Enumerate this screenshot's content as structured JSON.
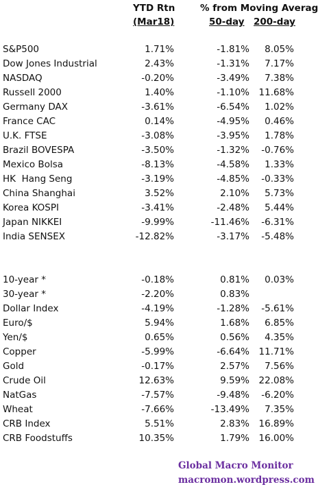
{
  "header": {
    "ytd_title": "YTD Rtn",
    "ytd_sub": "(Mar18)",
    "ma_title": "% from Moving Average",
    "ma_50": "50-day",
    "ma_200": "200-day"
  },
  "indices": [
    {
      "name": "S&P500",
      "ytd": "1.71%",
      "d50": "-1.81%",
      "d200": "8.05%"
    },
    {
      "name": "Dow Jones Industrial",
      "ytd": "2.43%",
      "d50": "-1.31%",
      "d200": "7.17%"
    },
    {
      "name": "NASDAQ",
      "ytd": "-0.20%",
      "d50": "-3.49%",
      "d200": "7.38%"
    },
    {
      "name": "Russell 2000",
      "ytd": "1.40%",
      "d50": "-1.10%",
      "d200": "11.68%"
    },
    {
      "name": "Germany DAX",
      "ytd": "-3.61%",
      "d50": "-6.54%",
      "d200": "1.02%"
    },
    {
      "name": "France CAC",
      "ytd": "0.14%",
      "d50": "-4.95%",
      "d200": "0.46%"
    },
    {
      "name": "U.K. FTSE",
      "ytd": "-3.08%",
      "d50": "-3.95%",
      "d200": "1.78%"
    },
    {
      "name": "Brazil BOVESPA",
      "ytd": "-3.50%",
      "d50": "-1.32%",
      "d200": "-0.76%"
    },
    {
      "name": "Mexico Bolsa",
      "ytd": "-8.13%",
      "d50": "-4.58%",
      "d200": "1.33%"
    },
    {
      "name": "HK  Hang Seng",
      "ytd": "-3.19%",
      "d50": "-4.85%",
      "d200": "-0.33%"
    },
    {
      "name": "China Shanghai",
      "ytd": "3.52%",
      "d50": "2.10%",
      "d200": "5.73%"
    },
    {
      "name": "Korea KOSPI",
      "ytd": "-3.41%",
      "d50": "-2.48%",
      "d200": "5.44%"
    },
    {
      "name": "Japan NIKKEI",
      "ytd": "-9.99%",
      "d50": "-11.46%",
      "d200": "-6.31%"
    },
    {
      "name": "India SENSEX",
      "ytd": "-12.82%",
      "d50": "-3.17%",
      "d200": "-5.48%"
    }
  ],
  "other": [
    {
      "name": "10-year *",
      "ytd": "-0.18%",
      "d50": "0.81%",
      "d200": "0.03%"
    },
    {
      "name": "30-year *",
      "ytd": "-2.20%",
      "d50": "0.83%",
      "d200": ""
    },
    {
      "name": "Dollar Index",
      "ytd": "-4.19%",
      "d50": "-1.28%",
      "d200": "-5.61%"
    },
    {
      "name": "Euro/$",
      "ytd": "5.94%",
      "d50": "1.68%",
      "d200": "6.85%"
    },
    {
      "name": "Yen/$",
      "ytd": "0.65%",
      "d50": "0.56%",
      "d200": "4.35%"
    },
    {
      "name": "Copper",
      "ytd": "-5.99%",
      "d50": "-6.64%",
      "d200": "11.71%"
    },
    {
      "name": "Gold",
      "ytd": "-0.17%",
      "d50": "2.57%",
      "d200": "7.56%"
    },
    {
      "name": "Crude Oil",
      "ytd": "12.63%",
      "d50": "9.59%",
      "d200": "22.08%"
    },
    {
      "name": "NatGas",
      "ytd": "-7.57%",
      "d50": "-9.48%",
      "d200": "-6.20%"
    },
    {
      "name": "Wheat",
      "ytd": "-7.66%",
      "d50": "-13.49%",
      "d200": "7.35%"
    },
    {
      "name": "CRB Index",
      "ytd": "5.51%",
      "d50": "2.83%",
      "d200": "16.89%"
    },
    {
      "name": "CRB Foodstuffs",
      "ytd": "10.35%",
      "d50": "1.79%",
      "d200": "16.00%"
    }
  ],
  "footer": {
    "line1": "Global Macro Monitor",
    "line2": "macromon.wordpress.com"
  },
  "colors": {
    "footer_text": "#6b2fa0"
  }
}
